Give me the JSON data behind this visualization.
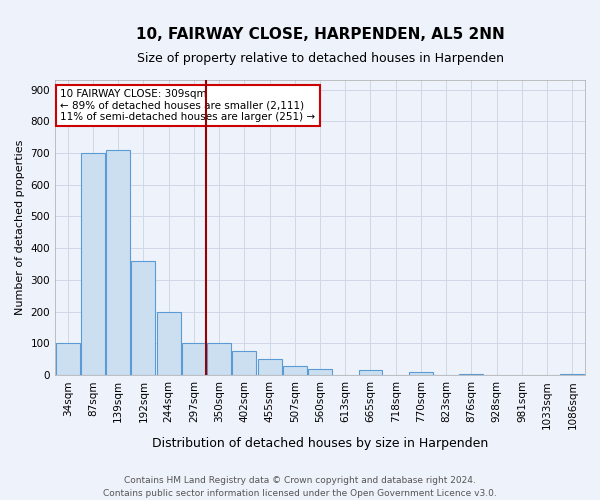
{
  "title": "10, FAIRWAY CLOSE, HARPENDEN, AL5 2NN",
  "subtitle": "Size of property relative to detached houses in Harpenden",
  "xlabel": "Distribution of detached houses by size in Harpenden",
  "ylabel": "Number of detached properties",
  "categories": [
    "34sqm",
    "87sqm",
    "139sqm",
    "192sqm",
    "244sqm",
    "297sqm",
    "350sqm",
    "402sqm",
    "455sqm",
    "507sqm",
    "560sqm",
    "613sqm",
    "665sqm",
    "718sqm",
    "770sqm",
    "823sqm",
    "876sqm",
    "928sqm",
    "981sqm",
    "1033sqm",
    "1086sqm"
  ],
  "values": [
    100,
    700,
    710,
    360,
    200,
    100,
    100,
    75,
    50,
    30,
    20,
    0,
    15,
    0,
    10,
    0,
    5,
    0,
    0,
    0,
    5
  ],
  "bar_color": "#ccdff0",
  "bar_edge_color": "#5b9bd5",
  "vline_color": "#990000",
  "vline_x": 5.5,
  "annotation_text": "10 FAIRWAY CLOSE: 309sqm\n← 89% of detached houses are smaller (2,111)\n11% of semi-detached houses are larger (251) →",
  "annotation_box_color": "white",
  "annotation_box_edge": "#cc0000",
  "ylim": [
    0,
    930
  ],
  "yticks": [
    0,
    100,
    200,
    300,
    400,
    500,
    600,
    700,
    800,
    900
  ],
  "footnote": "Contains HM Land Registry data © Crown copyright and database right 2024.\nContains public sector information licensed under the Open Government Licence v3.0.",
  "bg_color": "#eef2fa",
  "grid_color": "#d0d8e8",
  "title_fontsize": 11,
  "subtitle_fontsize": 9,
  "ylabel_fontsize": 8,
  "xlabel_fontsize": 9,
  "tick_fontsize": 7.5,
  "annot_fontsize": 7.5,
  "footnote_fontsize": 6.5
}
